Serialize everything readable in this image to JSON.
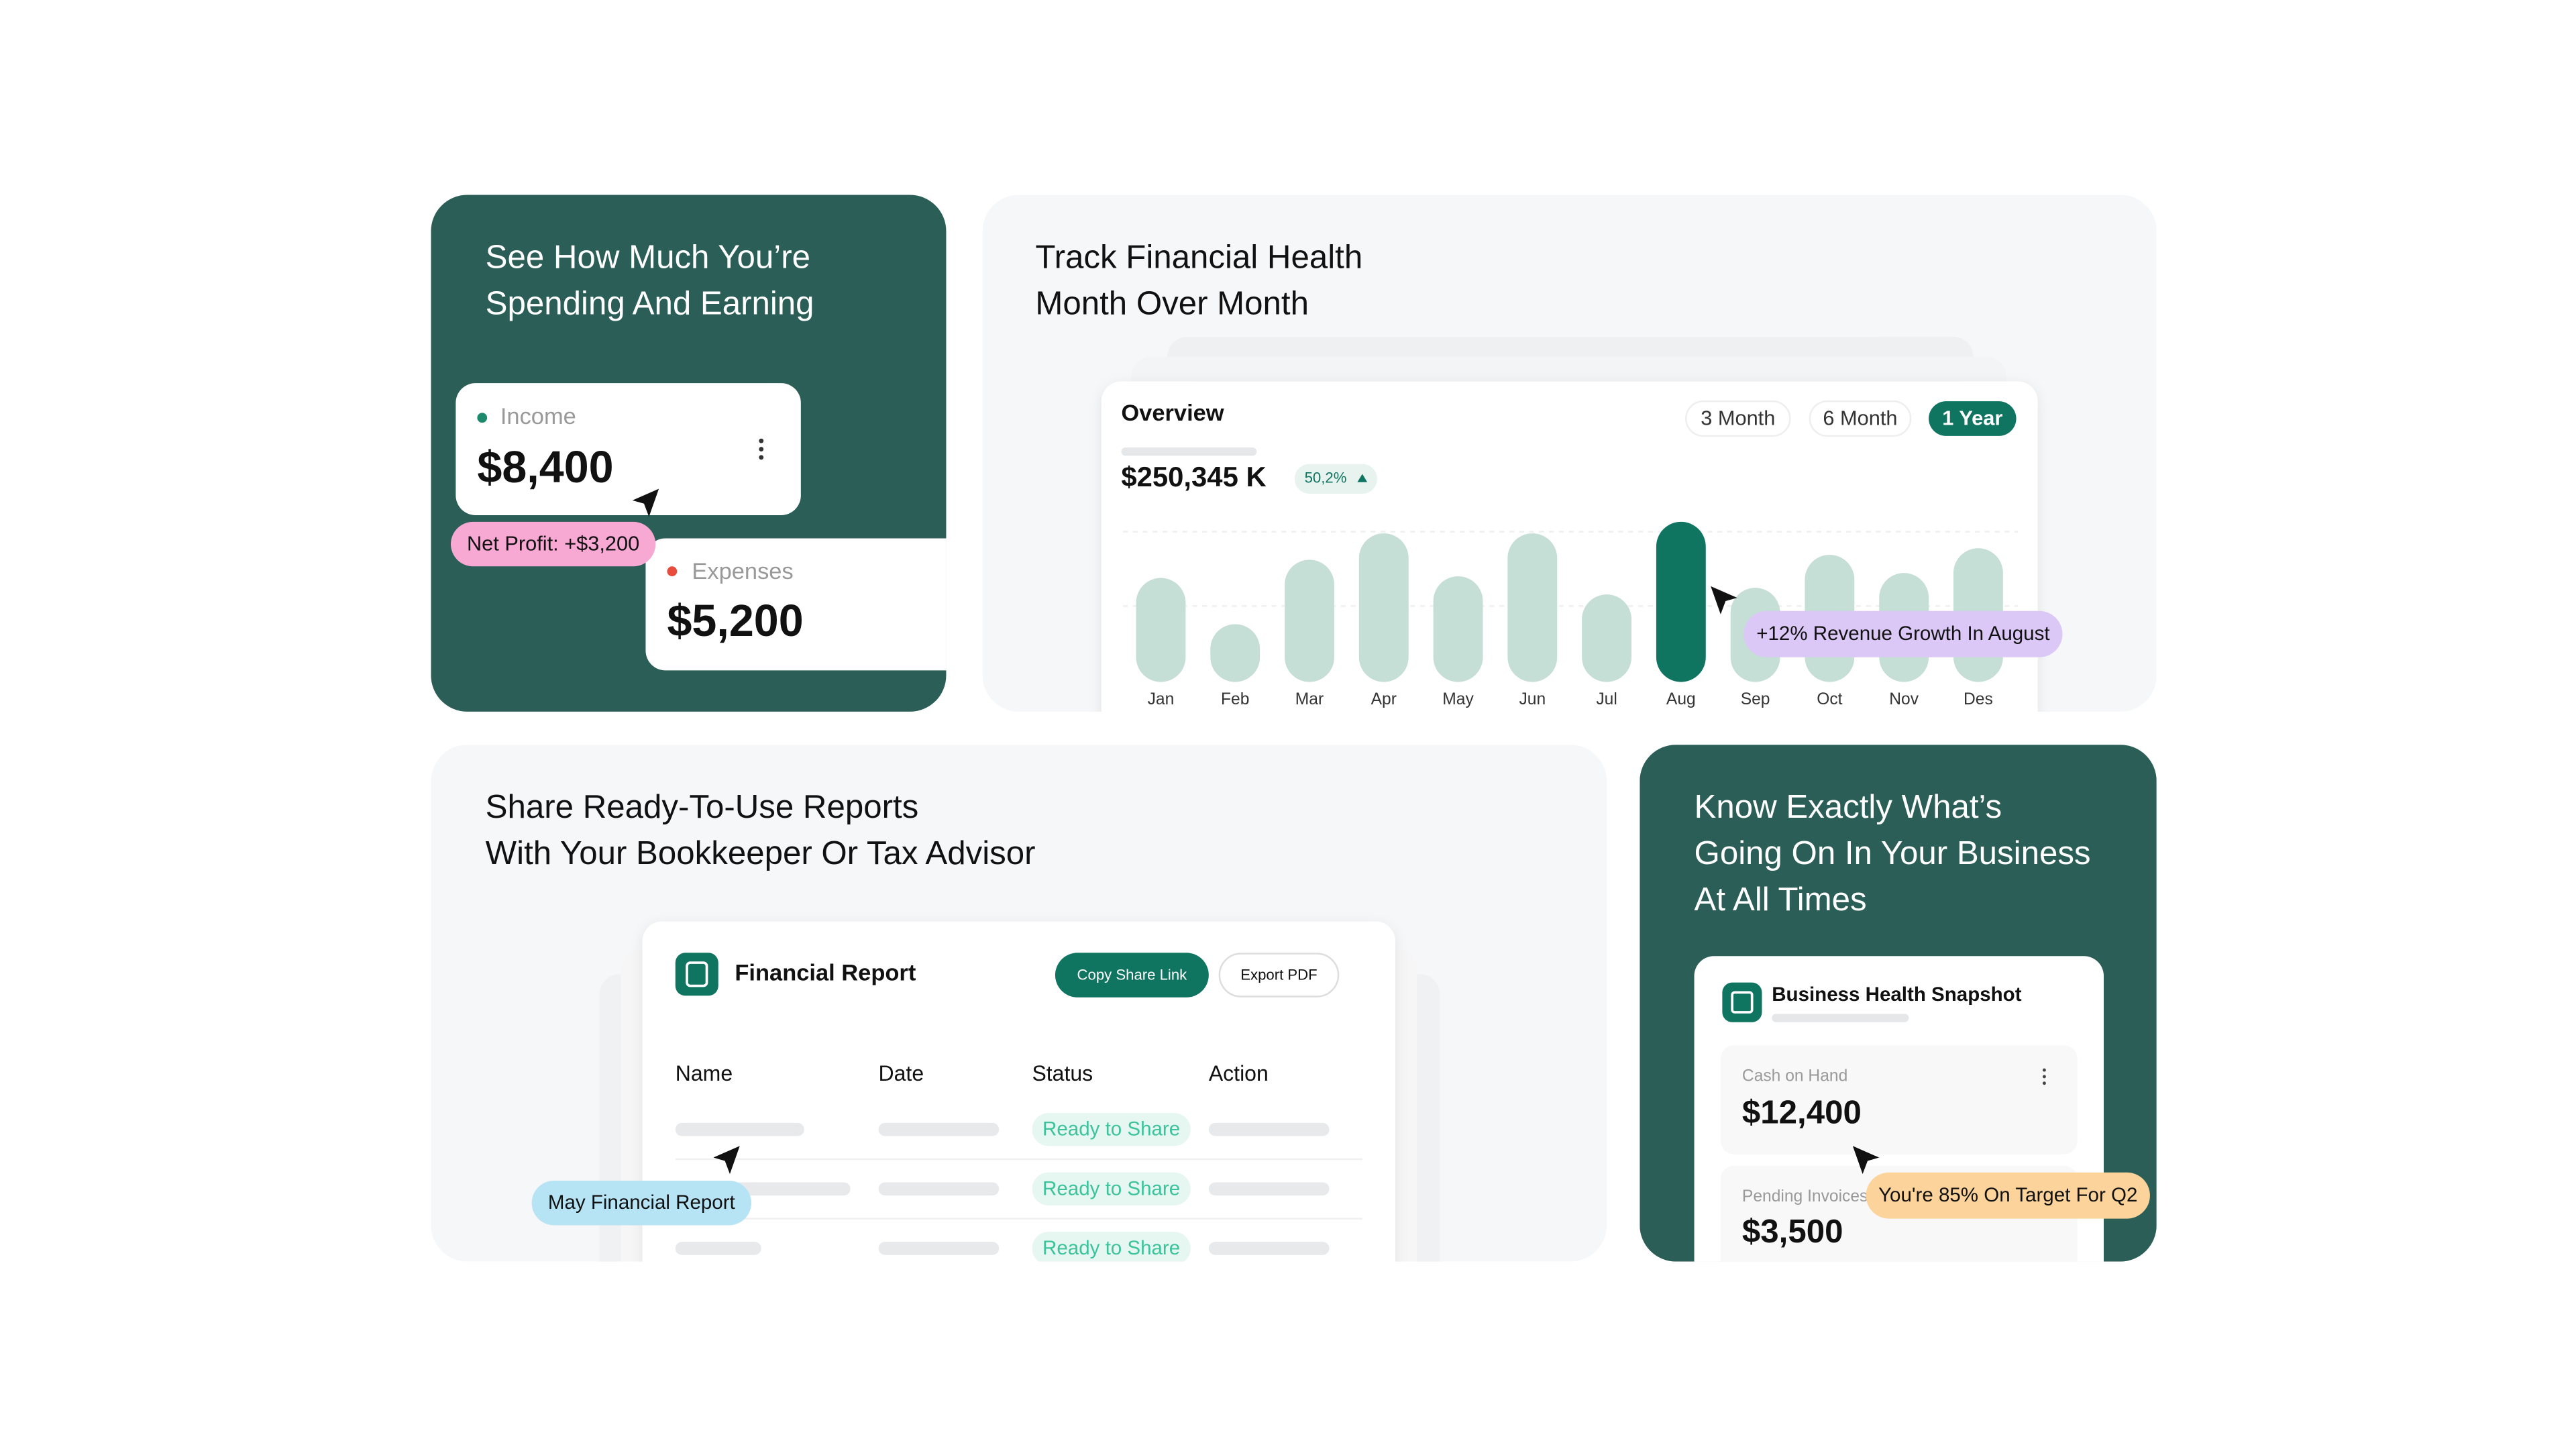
{
  "spending_card": {
    "title_lines": [
      "See How Much You’re",
      "Spending And Earning"
    ],
    "income": {
      "label": "Income",
      "value": "$8,400"
    },
    "net_profit": "Net Profit: +$3,200",
    "expenses": {
      "label": "Expenses",
      "value": "$5,200"
    }
  },
  "health_card": {
    "title_lines": [
      "Track Financial Health",
      "Month Over Month"
    ],
    "overview": {
      "title": "Overview",
      "total": "$250,345 K",
      "change": "50,2%",
      "tabs": [
        "3 Month",
        "6 Month",
        "1 Year"
      ],
      "active_tab": 2
    },
    "callout": "+12% Revenue Growth In August"
  },
  "chart_data": {
    "type": "bar",
    "categories": [
      "Jan",
      "Feb",
      "Mar",
      "Apr",
      "May",
      "Jun",
      "Jul",
      "Aug",
      "Sep",
      "Oct",
      "Nov",
      "Des"
    ],
    "values": [
      63,
      35,
      74,
      90,
      64,
      90,
      53,
      97,
      57,
      77,
      66,
      81
    ],
    "color": "#c5ded6",
    "highlight_color": "#0f7561",
    "highlight_index": 7
  },
  "reports_card": {
    "title_lines": [
      "Share Ready-To-Use Reports",
      "With Your Bookkeeper Or Tax Advisor"
    ],
    "report_title": "Financial Report",
    "buttons": [
      "Copy Share Link",
      "Export PDF"
    ],
    "columns": [
      "Name",
      "Date",
      "Status",
      "Action"
    ],
    "statuses": [
      "Ready to Share",
      "Ready to Share",
      "Ready to Share"
    ],
    "tooltip": "May Financial Report"
  },
  "business_card": {
    "title_lines": [
      "Know Exactly What’s",
      "Going On In Your Business",
      "At All Times"
    ],
    "snapshot_title": "Business Health Snapshot",
    "cash": {
      "label": "Cash on Hand",
      "value": "$12,400"
    },
    "pending": {
      "label": "Pending Invoices",
      "value": "$3,500"
    },
    "callout": "You're 85% On Target For Q2"
  }
}
